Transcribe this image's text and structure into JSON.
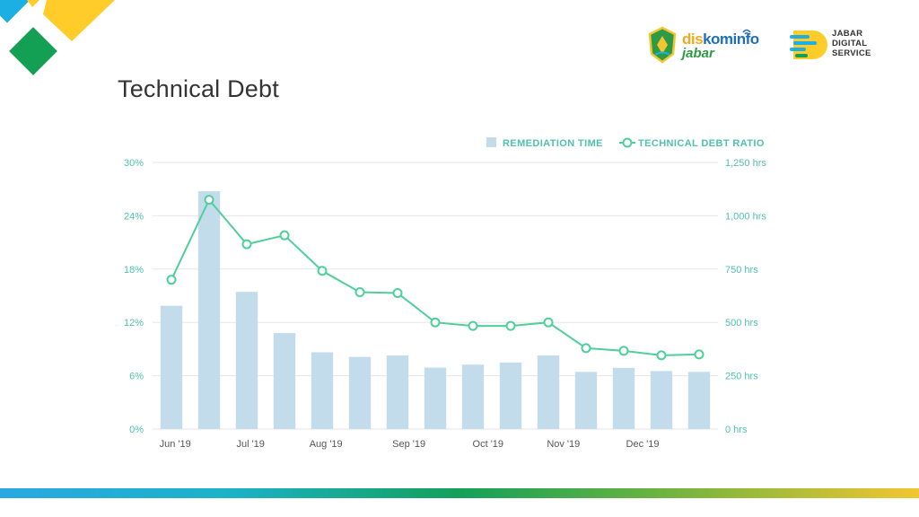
{
  "page": {
    "title": "Technical Debt"
  },
  "logos": {
    "diskominfo": {
      "name_part1": "dis",
      "name_part2": "kominfo",
      "region": "jabar"
    },
    "jds": {
      "line1": "JABAR",
      "line2": "DIGITAL",
      "line3": "SERVICE"
    }
  },
  "colors": {
    "bar": "#c3dceb",
    "line": "#4fcf9a",
    "axis_text": "#4fc1ae",
    "grid": "#e6e6e6"
  },
  "chart_data": {
    "type": "bar",
    "title": "Technical Debt",
    "x_tick_labels": [
      "Jun '19",
      "Jul '19",
      "Aug '19",
      "Sep '19",
      "Oct '19",
      "Nov '19",
      "Dec '19"
    ],
    "x_tick_positions": [
      0.6,
      2.6,
      4.6,
      6.8,
      8.9,
      10.9,
      13
    ],
    "legend": {
      "position": "top-right",
      "bar_label": "REMEDIATION TIME",
      "line_label": "TECHNICAL DEBT RATIO"
    },
    "y_left": {
      "ticks": [
        "0%",
        "6%",
        "12%",
        "18%",
        "24%",
        "30%"
      ],
      "min": 0,
      "max": 30,
      "unit": "%"
    },
    "y_right": {
      "ticks": [
        "0 hrs",
        "250 hrs",
        "500 hrs",
        "750 hrs",
        "1,000 hrs",
        "1,250 hrs"
      ],
      "min": 0,
      "max": 1250,
      "unit": "hrs"
    },
    "grid": true,
    "series": [
      {
        "name": "REMEDIATION TIME",
        "type": "bar",
        "axis": "right",
        "values": [
          578,
          1115,
          643,
          450,
          360,
          338,
          345,
          288,
          302,
          312,
          345,
          268,
          287,
          272,
          268
        ]
      },
      {
        "name": "TECHNICAL DEBT RATIO",
        "type": "line",
        "axis": "left",
        "values": [
          16.8,
          25.8,
          20.8,
          21.8,
          17.8,
          15.4,
          15.3,
          12.0,
          11.6,
          11.6,
          12.0,
          9.1,
          8.8,
          8.3,
          8.4
        ]
      }
    ]
  }
}
